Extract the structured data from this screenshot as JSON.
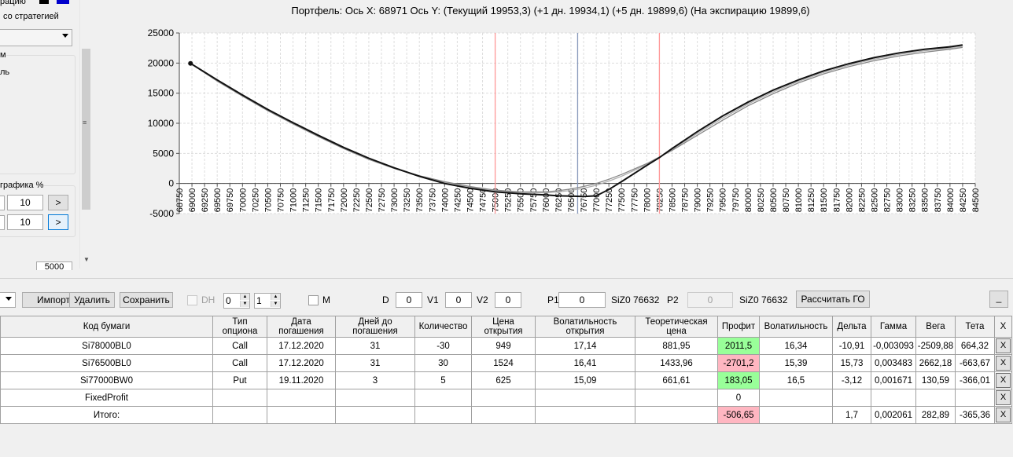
{
  "left_panel": {
    "top_label": "рацию",
    "strategy_label": "со стратегией",
    "group1_label": "м",
    "group1_item": "ль",
    "group2_label": "графика %",
    "row1_value": "10",
    "row2_value": "10",
    "arrow_label": ">",
    "bottom_value": "5000",
    "colors": {
      "swatch1": "#000000",
      "swatch2": "#0000cc"
    }
  },
  "chart": {
    "title": "Портфель: Ось X: 68971 Ось Y:  (Текущий 19953,3)  (+1 дн. 19934,1)  (+5 дн. 19899,6)  (На экспирацию 19899,6)"
  },
  "chart_data": {
    "type": "line",
    "xlim": [
      68750,
      84500
    ],
    "ylim": [
      -5000,
      25000
    ],
    "x_ticks": [
      68750,
      69000,
      69250,
      69500,
      69750,
      70000,
      70250,
      70500,
      70750,
      71000,
      71250,
      71500,
      71750,
      72000,
      72250,
      72500,
      72750,
      73000,
      73250,
      73500,
      73750,
      74000,
      74250,
      74500,
      74750,
      75000,
      75250,
      75500,
      75750,
      76000,
      76250,
      76500,
      76750,
      77000,
      77250,
      77500,
      77750,
      78000,
      78250,
      78500,
      78750,
      79000,
      79250,
      79500,
      79750,
      80000,
      80250,
      80500,
      80750,
      81000,
      81250,
      81500,
      81750,
      82000,
      82250,
      82500,
      82750,
      83000,
      83250,
      83500,
      83750,
      84000,
      84250,
      84500
    ],
    "y_ticks": [
      -5000,
      0,
      5000,
      10000,
      15000,
      20000,
      25000
    ],
    "grid": true,
    "vertical_markers": [
      {
        "x": 75000,
        "color": "#ff9999"
      },
      {
        "x": 76632,
        "color": "#8899bb"
      },
      {
        "x": 78250,
        "color": "#ff9999"
      }
    ],
    "marker_point": {
      "x": 68971,
      "y": 19953
    },
    "series": [
      {
        "color": "#111111",
        "x": [
          68971,
          69500,
          70000,
          70500,
          71000,
          71500,
          72000,
          72500,
          73000,
          73500,
          74000,
          74500,
          75000,
          75500,
          76000,
          76250,
          76500,
          76750,
          77000,
          77250,
          77500,
          78000,
          78250,
          78500,
          79000,
          79500,
          80000,
          80500,
          81000,
          81500,
          82000,
          82500,
          83000,
          83500,
          84000,
          84250
        ],
        "y": [
          19953,
          17200,
          14700,
          12300,
          10100,
          8000,
          6000,
          4200,
          2600,
          1200,
          0,
          -800,
          -1400,
          -1700,
          -1900,
          -2050,
          -2100,
          -2150,
          -2050,
          -1000,
          300,
          3000,
          4300,
          5800,
          8600,
          11200,
          13500,
          15500,
          17200,
          18700,
          19900,
          20900,
          21700,
          22300,
          22700,
          23000
        ]
      },
      {
        "color": "#888888",
        "x": [
          68971,
          69500,
          70000,
          70500,
          71000,
          71500,
          72000,
          72500,
          73000,
          73500,
          74000,
          74500,
          75000,
          75500,
          76000,
          76250,
          76500,
          76750,
          77000,
          77250,
          77500,
          78000,
          78250,
          78500,
          79000,
          79500,
          80000,
          80500,
          81000,
          81500,
          82000,
          82500,
          83000,
          83500,
          84000,
          84250
        ],
        "y": [
          19953,
          17000,
          14500,
          12100,
          9900,
          7800,
          5800,
          4000,
          2500,
          1300,
          300,
          -500,
          -1100,
          -1400,
          -1400,
          -1200,
          -900,
          -500,
          0,
          700,
          1500,
          3300,
          4400,
          5500,
          8000,
          10500,
          12900,
          14900,
          16700,
          18200,
          19400,
          20400,
          21200,
          21800,
          22300,
          22600
        ]
      },
      {
        "color": "#b0b0b0",
        "x": [
          68971,
          69500,
          70000,
          70500,
          71000,
          71500,
          72000,
          72500,
          73000,
          73500,
          74000,
          74500,
          75000,
          75500,
          76000,
          76250,
          76500,
          76750,
          77000,
          77250,
          77500,
          78000,
          78250,
          78500,
          79000,
          79500,
          80000,
          80500,
          81000,
          81500,
          82000,
          82500,
          83000,
          83500,
          84000,
          84250
        ],
        "y": [
          19953,
          17100,
          14600,
          12200,
          10000,
          7900,
          5900,
          4100,
          2550,
          1250,
          200,
          -600,
          -1200,
          -1500,
          -1550,
          -1400,
          -1150,
          -800,
          -300,
          400,
          1200,
          3150,
          4350,
          5650,
          8300,
          10850,
          13200,
          15200,
          16950,
          18450,
          19650,
          20650,
          21450,
          22050,
          22500,
          22800
        ]
      }
    ]
  },
  "toolbar": {
    "import_label": "Импорт",
    "delete_label": "Удалить",
    "save_label": "Сохранить",
    "dh_label": "DH",
    "spin1_value": "0",
    "spin2_value": "1",
    "m_label": "M",
    "d_label": "D",
    "d_value": "0",
    "v1_label": "V1",
    "v1_value": "0",
    "v2_label": "V2",
    "v2_value": "0",
    "p1_label": "P1",
    "p1_value": "0",
    "p1_ticker": "SiZ0 76632",
    "p2_label": "P2",
    "p2_value": "0",
    "p2_ticker": "SiZ0 76632",
    "calc_label": "Рассчитать ГО",
    "minimize_label": "_"
  },
  "table": {
    "headers": {
      "code": "Код бумаги",
      "type_1": "Тип",
      "type_2": "опциона",
      "date_1": "Дата",
      "date_2": "погашения",
      "days_1": "Дней до",
      "days_2": "погашения",
      "qty": "Количество",
      "price_1": "Цена",
      "price_2": "открытия",
      "vol_open_1": "Волатильность",
      "vol_open_2": "открытия",
      "theor_1": "Теоретическая",
      "theor_2": "цена",
      "profit": "Профит",
      "vol": "Волатильность",
      "delta": "Дельта",
      "gamma": "Гамма",
      "vega": "Вега",
      "theta": "Тета",
      "x": "X"
    },
    "rows": [
      {
        "code": "Si78000BL0",
        "type": "Call",
        "date": "17.12.2020",
        "days": "31",
        "qty": "-30",
        "price": "949",
        "vol_open": "17,14",
        "theor": "881,95",
        "profit": "2011,5",
        "vol": "16,34",
        "delta": "-10,91",
        "gamma": "-0,003093",
        "vega": "-2509,88",
        "theta": "664,32",
        "x": "X"
      },
      {
        "code": "Si76500BL0",
        "type": "Call",
        "date": "17.12.2020",
        "days": "31",
        "qty": "30",
        "price": "1524",
        "vol_open": "16,41",
        "theor": "1433,96",
        "profit": "-2701,2",
        "vol": "15,39",
        "delta": "15,73",
        "gamma": "0,003483",
        "vega": "2662,18",
        "theta": "-663,67",
        "x": "X"
      },
      {
        "code": "Si77000BW0",
        "type": "Put",
        "date": "19.11.2020",
        "days": "3",
        "qty": "5",
        "price": "625",
        "vol_open": "15,09",
        "theor": "661,61",
        "profit": "183,05",
        "vol": "16,5",
        "delta": "-3,12",
        "gamma": "0,001671",
        "vega": "130,59",
        "theta": "-366,01",
        "x": "X"
      },
      {
        "code": "FixedProfit",
        "profit": "0",
        "x": "X"
      },
      {
        "code": "Итого:",
        "profit": "-506,65",
        "delta": "1,7",
        "gamma": "0,002061",
        "vega": "282,89",
        "theta": "-365,36",
        "x": "X"
      }
    ],
    "colors": {
      "positive": "#99ff99",
      "negative": "#ffb6c1"
    }
  }
}
